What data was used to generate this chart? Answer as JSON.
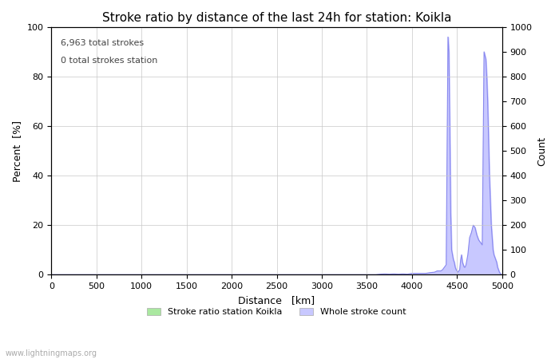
{
  "title": "Stroke ratio by distance of the last 24h for station: Koikla",
  "xlabel": "Distance   [km]",
  "ylabel_left": "Percent  [%]",
  "ylabel_right": "Count",
  "annotation_line1": "6,963 total strokes",
  "annotation_line2": "0 total strokes station",
  "watermark": "www.lightningmaps.org",
  "xlim": [
    0,
    5000
  ],
  "ylim_left": [
    0,
    100
  ],
  "ylim_right": [
    0,
    1000
  ],
  "xticks": [
    0,
    500,
    1000,
    1500,
    2000,
    2500,
    3000,
    3500,
    4000,
    4500,
    5000
  ],
  "yticks_left": [
    0,
    20,
    40,
    60,
    80,
    100
  ],
  "yticks_right": [
    0,
    100,
    200,
    300,
    400,
    500,
    600,
    700,
    800,
    900,
    1000
  ],
  "legend_entries": [
    "Stroke ratio station Koikla",
    "Whole stroke count"
  ],
  "legend_colors": [
    "#aae8a0",
    "#c8c8ff"
  ],
  "background_color": "#ffffff",
  "grid_color": "#c8c8c8",
  "line_color": "#8888ee",
  "fill_color": "#c8c8ff",
  "title_fontsize": 11,
  "axis_fontsize": 9,
  "tick_fontsize": 8,
  "count_data_x": [
    0,
    100,
    200,
    300,
    400,
    500,
    600,
    700,
    800,
    900,
    1000,
    1100,
    1200,
    1300,
    1400,
    1500,
    1600,
    1700,
    1800,
    1900,
    2000,
    2100,
    2200,
    2300,
    2400,
    2500,
    2600,
    2700,
    2800,
    2900,
    3000,
    3100,
    3200,
    3300,
    3400,
    3500,
    3600,
    3650,
    3700,
    3750,
    3800,
    3850,
    3900,
    3950,
    4000,
    4050,
    4100,
    4150,
    4200,
    4250,
    4280,
    4300,
    4320,
    4340,
    4360,
    4380,
    4400,
    4410,
    4420,
    4430,
    4440,
    4450,
    4460,
    4470,
    4480,
    4490,
    4500,
    4510,
    4520,
    4530,
    4540,
    4550,
    4560,
    4570,
    4580,
    4590,
    4600,
    4620,
    4640,
    4660,
    4680,
    4700,
    4720,
    4740,
    4760,
    4780,
    4800,
    4820,
    4830,
    4840,
    4850,
    4860,
    4870,
    4880,
    4890,
    4900,
    4910,
    4920,
    4930,
    4940,
    4950,
    4960,
    4970,
    4980,
    4990,
    5000
  ],
  "count_data_y": [
    0,
    0,
    0,
    0,
    0,
    0,
    0,
    0,
    0,
    0,
    0,
    0,
    0,
    0,
    0,
    0,
    0,
    0,
    0,
    0,
    0,
    0,
    0,
    0,
    0,
    0,
    0,
    0,
    0,
    0,
    0,
    0,
    0,
    0,
    0,
    0,
    0,
    2,
    3,
    2,
    3,
    2,
    3,
    2,
    5,
    5,
    5,
    5,
    8,
    10,
    15,
    15,
    15,
    20,
    30,
    40,
    960,
    900,
    600,
    250,
    100,
    80,
    60,
    50,
    30,
    20,
    15,
    10,
    15,
    20,
    60,
    80,
    50,
    40,
    30,
    30,
    40,
    80,
    150,
    170,
    200,
    190,
    160,
    140,
    130,
    120,
    900,
    870,
    800,
    700,
    550,
    400,
    300,
    200,
    150,
    100,
    80,
    70,
    60,
    50,
    30,
    20,
    10,
    5,
    0,
    0
  ]
}
